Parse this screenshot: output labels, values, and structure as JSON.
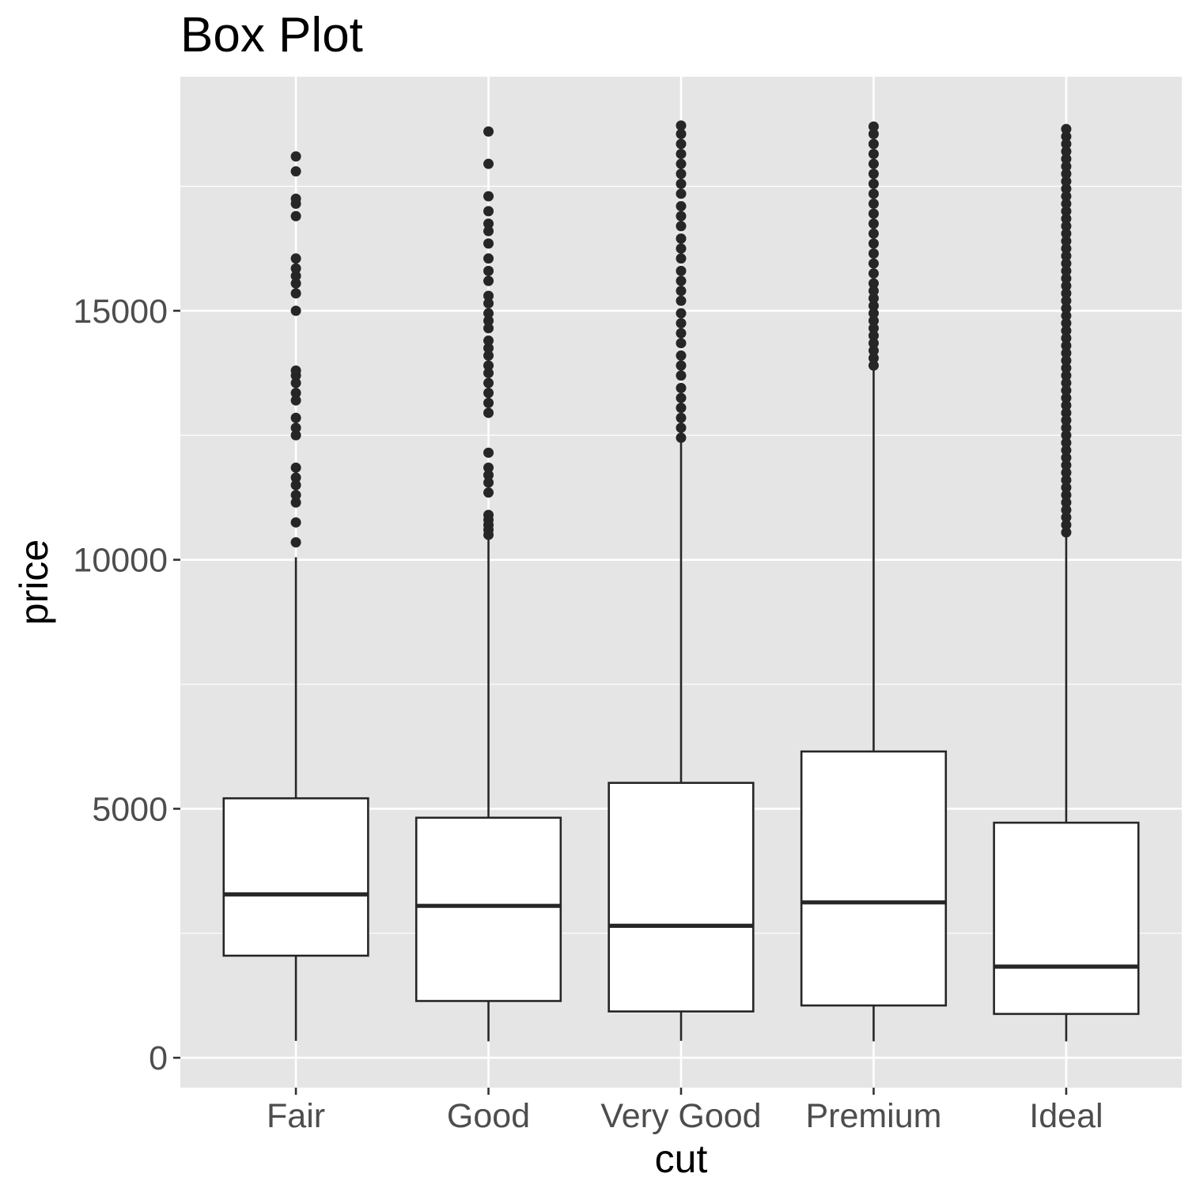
{
  "chart_data": {
    "type": "boxplot",
    "title": "Box Plot",
    "xlabel": "cut",
    "ylabel": "price",
    "ylim": [
      -600,
      19700
    ],
    "y_ticks": [
      0,
      5000,
      10000,
      15000
    ],
    "y_tick_labels": [
      "0",
      "5000",
      "10000",
      "15000"
    ],
    "grid": true,
    "colors": {
      "panel": "#e5e5e5",
      "grid": "#ffffff",
      "box_fill": "#ffffff",
      "box_stroke": "#262626",
      "point": "#262626"
    },
    "categories": [
      "Fair",
      "Good",
      "Very Good",
      "Premium",
      "Ideal"
    ],
    "boxes": [
      {
        "category": "Fair",
        "whisker_low": 340,
        "q1": 2050,
        "median": 3280,
        "q3": 5210,
        "whisker_high": 10050,
        "outliers": [
          10350,
          10750,
          11150,
          11300,
          11500,
          11650,
          11850,
          12500,
          12650,
          12850,
          13200,
          13350,
          13550,
          13700,
          13800,
          15000,
          15350,
          15550,
          15700,
          15850,
          16050,
          16900,
          17150,
          17250,
          17800,
          18100
        ]
      },
      {
        "category": "Good",
        "whisker_low": 330,
        "q1": 1140,
        "median": 3050,
        "q3": 4820,
        "whisker_high": 10470,
        "outliers": [
          10500,
          10600,
          10700,
          10800,
          10900,
          11350,
          11550,
          11700,
          11850,
          12150,
          12950,
          13150,
          13350,
          13550,
          13750,
          13900,
          14100,
          14250,
          14400,
          14650,
          14800,
          14950,
          15150,
          15300,
          15600,
          15800,
          16050,
          16350,
          16600,
          16750,
          17000,
          17300,
          17950,
          18600
        ]
      },
      {
        "category": "Very Good",
        "whisker_low": 340,
        "q1": 930,
        "median": 2650,
        "q3": 5520,
        "whisker_high": 12420,
        "outliers": [
          12450,
          12650,
          12850,
          13050,
          13250,
          13450,
          13700,
          13900,
          14100,
          14350,
          14550,
          14750,
          14950,
          15200,
          15400,
          15600,
          15800,
          16050,
          16250,
          16450,
          16700,
          16900,
          17100,
          17350,
          17550,
          17750,
          17950,
          18150,
          18350,
          18550,
          18720
        ]
      },
      {
        "category": "Premium",
        "whisker_low": 330,
        "q1": 1050,
        "median": 3120,
        "q3": 6150,
        "whisker_high": 13800,
        "outliers": [
          13900,
          14050,
          14200,
          14350,
          14500,
          14650,
          14800,
          14950,
          15100,
          15250,
          15400,
          15550,
          15750,
          15950,
          16150,
          16350,
          16550,
          16750,
          16950,
          17150,
          17350,
          17550,
          17750,
          17950,
          18150,
          18350,
          18550,
          18700
        ]
      },
      {
        "category": "Ideal",
        "whisker_low": 330,
        "q1": 880,
        "median": 1830,
        "q3": 4720,
        "whisker_high": 10500,
        "outliers": [
          10550,
          10700,
          10850,
          11000,
          11150,
          11300,
          11450,
          11600,
          11750,
          11900,
          12050,
          12200,
          12350,
          12500,
          12650,
          12800,
          12950,
          13100,
          13250,
          13400,
          13550,
          13700,
          13850,
          14000,
          14150,
          14300,
          14450,
          14600,
          14750,
          14900,
          15050,
          15200,
          15350,
          15500,
          15650,
          15800,
          15950,
          16100,
          16250,
          16400,
          16550,
          16700,
          16850,
          17000,
          17150,
          17300,
          17450,
          17600,
          17750,
          17900,
          18050,
          18200,
          18350,
          18500,
          18650
        ]
      }
    ]
  }
}
